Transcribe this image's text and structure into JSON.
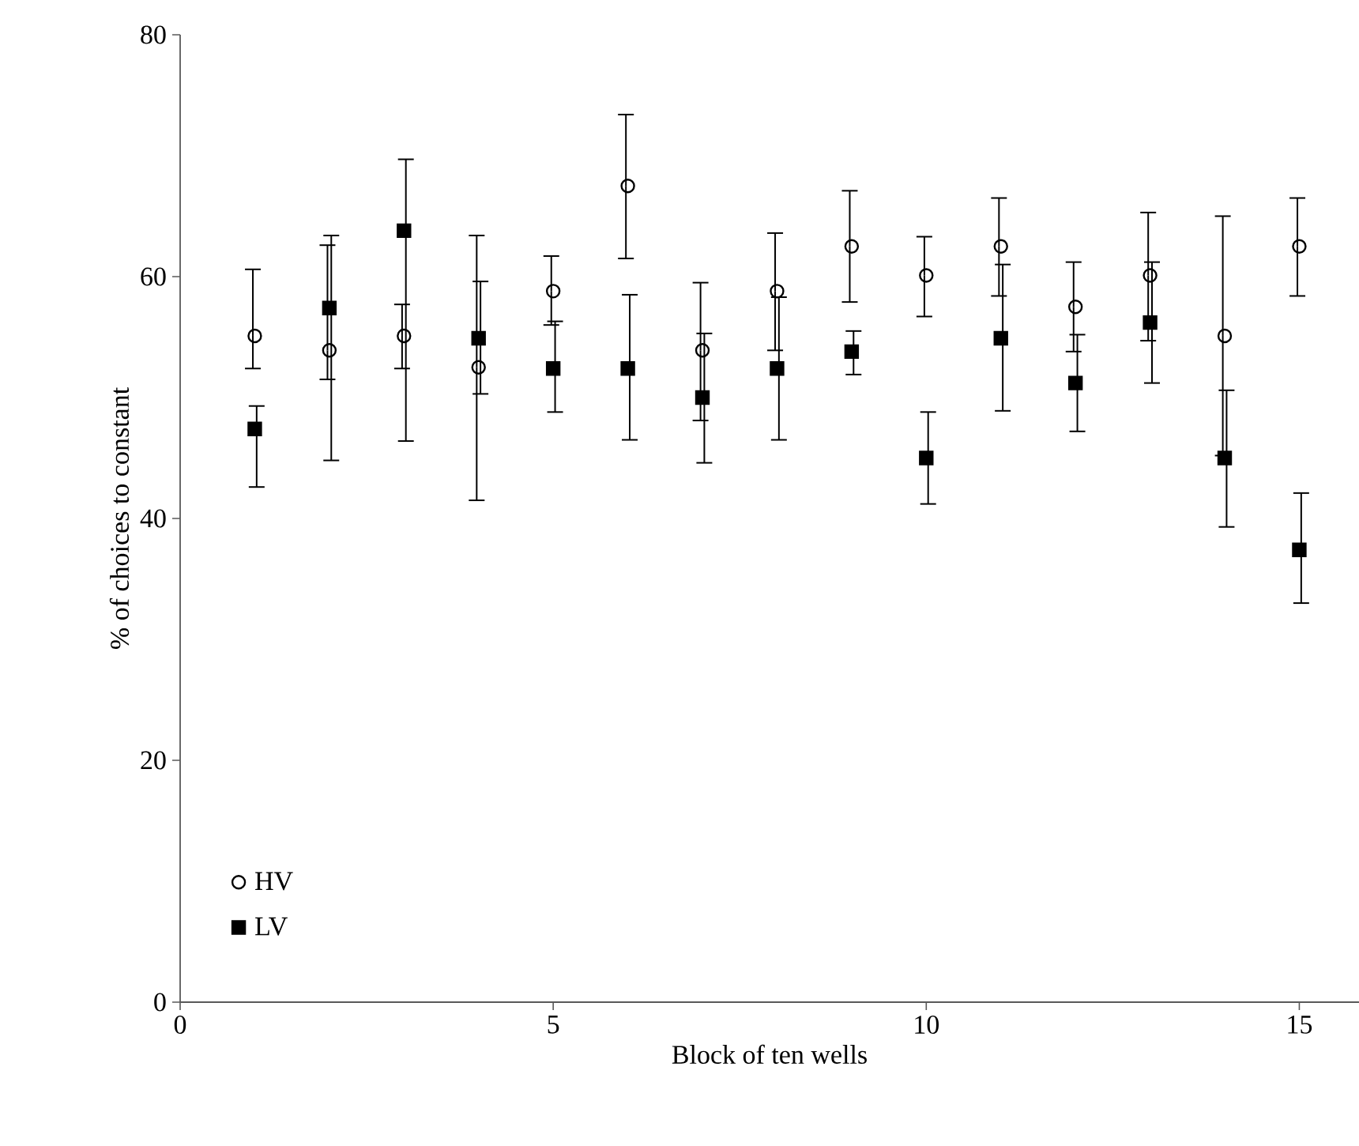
{
  "chart_data": {
    "type": "scatter",
    "xlabel": "Block of ten wells",
    "ylabel": "% of choices to constant",
    "x": [
      1,
      2,
      3,
      4,
      5,
      6,
      7,
      8,
      9,
      10,
      11,
      12,
      13,
      14,
      15
    ],
    "xlim": [
      0,
      15.8
    ],
    "xticks": [
      0,
      5,
      10,
      15
    ],
    "ylim": [
      0,
      80
    ],
    "yticks": [
      0,
      20,
      40,
      60,
      80
    ],
    "legend": "bottom left",
    "grid": false,
    "series": [
      {
        "name": "HV",
        "color": "#000000",
        "marker": "circle",
        "values": [
          55.1,
          53.9,
          55.1,
          52.5,
          58.8,
          67.5,
          53.9,
          58.8,
          62.5,
          60.1,
          62.5,
          57.5,
          60.1,
          55.1,
          62.5
        ],
        "errors": [
          [
            52.4,
            60.6
          ],
          [
            51.5,
            62.6
          ],
          [
            52.4,
            57.7
          ],
          [
            41.5,
            63.4
          ],
          [
            56.0,
            61.7
          ],
          [
            61.5,
            73.4
          ],
          [
            48.1,
            59.5
          ],
          [
            53.9,
            63.6
          ],
          [
            57.9,
            67.1
          ],
          [
            56.7,
            63.3
          ],
          [
            58.4,
            66.5
          ],
          [
            53.8,
            61.2
          ],
          [
            54.7,
            65.3
          ],
          [
            45.2,
            65.0
          ],
          [
            58.4,
            66.5
          ]
        ]
      },
      {
        "name": "LV",
        "color": "#000000",
        "marker": "square",
        "values": [
          47.4,
          57.4,
          63.8,
          54.9,
          52.4,
          52.4,
          50.0,
          52.4,
          53.8,
          45.0,
          54.9,
          51.2,
          56.2,
          45.0,
          37.4
        ],
        "errors": [
          [
            42.6,
            49.3
          ],
          [
            44.8,
            63.4
          ],
          [
            46.4,
            69.7
          ],
          [
            50.3,
            59.6
          ],
          [
            48.8,
            56.3
          ],
          [
            46.5,
            58.5
          ],
          [
            44.6,
            55.3
          ],
          [
            46.5,
            58.3
          ],
          [
            51.9,
            55.5
          ],
          [
            41.2,
            48.8
          ],
          [
            48.9,
            61.0
          ],
          [
            47.2,
            55.2
          ],
          [
            51.2,
            61.2
          ],
          [
            39.3,
            50.6
          ],
          [
            33.0,
            42.1
          ]
        ]
      }
    ]
  }
}
